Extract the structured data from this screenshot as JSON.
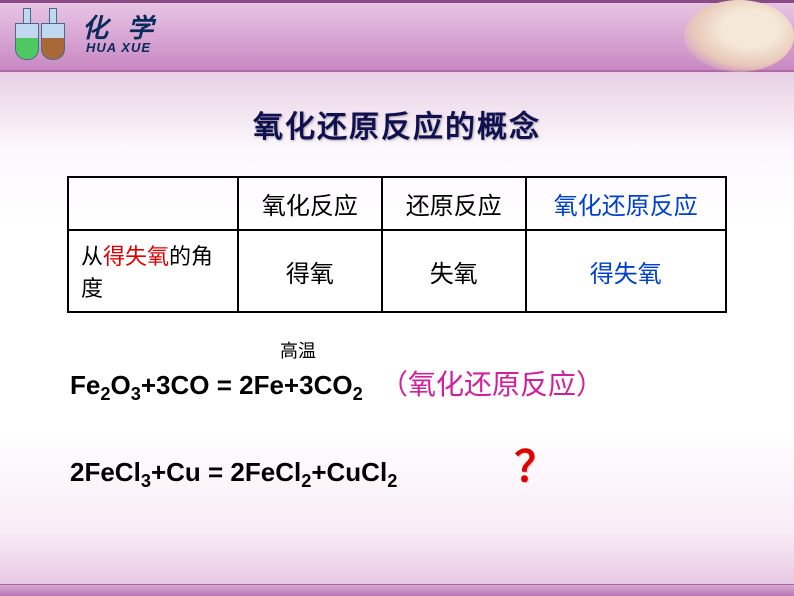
{
  "header": {
    "title_cn": "化 学",
    "title_en": "HUA XUE"
  },
  "main_title": "氧化还原反应的概念",
  "table": {
    "col_headers": [
      "氧化反应",
      "还原反应",
      "氧化还原反应"
    ],
    "row_header_prefix": "从",
    "row_header_highlight": "得失氧",
    "row_header_suffix": "的角度",
    "cells": [
      "得氧",
      "失氧",
      "得失氧"
    ]
  },
  "equations": {
    "eq1_condition": "高温",
    "eq1_left": "Fe",
    "eq1_part2": "O",
    "eq1_part3": "+3CO",
    "eq1_equals": " =  ",
    "eq1_right": "2Fe+3CO",
    "annotation1": "（氧化还原反应）",
    "eq2": "2FeCl",
    "eq2_part2": "+Cu = 2FeCl",
    "eq2_part3": "+CuCl",
    "question_mark": "？"
  },
  "colors": {
    "background": "#f3e1f1",
    "header_gradient_top": "#e8c8e4",
    "header_gradient_bottom": "#c888c2",
    "title_text": "#101050",
    "red": "#e00000",
    "blue": "#0040d0",
    "pink": "#d020a0",
    "table_border": "#000000"
  },
  "typography": {
    "main_title_size": 30,
    "table_cell_size": 24,
    "equation_size": 26,
    "annotation_size": 28,
    "question_size": 42
  }
}
